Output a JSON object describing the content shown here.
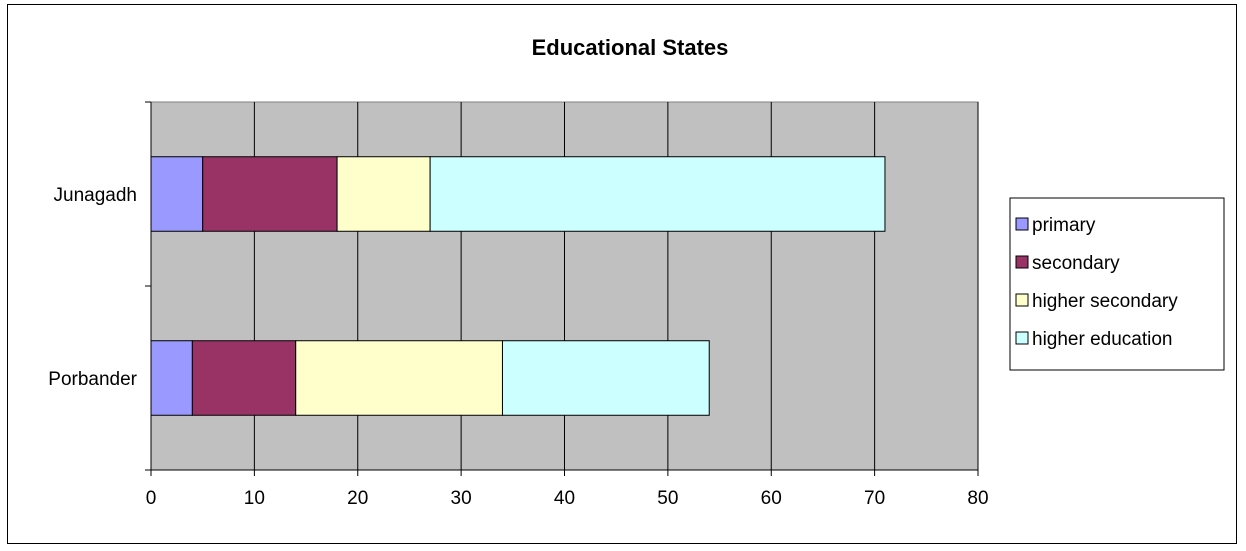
{
  "chart_data": {
    "type": "bar",
    "orientation": "horizontal",
    "stacked": true,
    "title": "Educational States",
    "categories": [
      "Junagadh",
      "Porbander"
    ],
    "series": [
      {
        "name": "primary",
        "values": [
          5,
          4
        ],
        "color": "#9999ff"
      },
      {
        "name": "secondary",
        "values": [
          13,
          10
        ],
        "color": "#993366"
      },
      {
        "name": "higher secondary",
        "values": [
          9,
          20
        ],
        "color": "#ffffcc"
      },
      {
        "name": "higher education",
        "values": [
          44,
          20
        ],
        "color": "#ccffff"
      }
    ],
    "xlim": [
      0,
      80
    ],
    "xticks": [
      "0",
      "10",
      "20",
      "30",
      "40",
      "50",
      "60",
      "70",
      "80"
    ],
    "xlabel": "",
    "ylabel": "",
    "grid": true,
    "plot_background": "#c0c0c0",
    "legend_position": "right"
  }
}
